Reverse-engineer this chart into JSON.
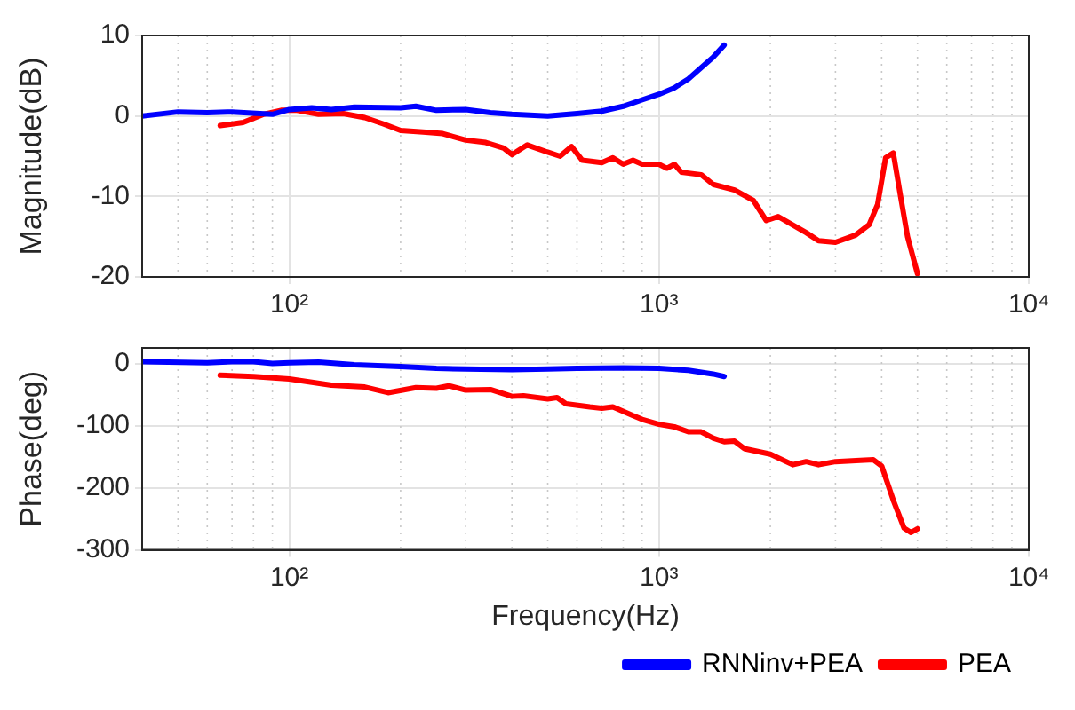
{
  "chart_data": [
    {
      "type": "line",
      "ylabel": "Magnitude(dB)",
      "log": "x",
      "grid": true,
      "legend": false,
      "xlim": [
        40,
        10000
      ],
      "xticks": [
        {
          "value": 100,
          "label": "10²"
        },
        {
          "value": 1000,
          "label": "10³"
        },
        {
          "value": 10000,
          "label": "10⁴"
        }
      ],
      "ylim": [
        -20,
        10
      ],
      "yticks": [
        10,
        0,
        -10,
        -20
      ],
      "series": [
        {
          "color": "#0000ff",
          "x": [
            40,
            50,
            60,
            70,
            90,
            100,
            115,
            130,
            150,
            200,
            220,
            250,
            300,
            350,
            400,
            500,
            600,
            700,
            800,
            900,
            1000,
            1100,
            1200,
            1300,
            1400,
            1500
          ],
          "values": [
            0,
            0.5,
            0.4,
            0.5,
            0.2,
            0.8,
            1.0,
            0.8,
            1.1,
            1.0,
            1.2,
            0.7,
            0.8,
            0.4,
            0.2,
            0,
            0.3,
            0.6,
            1.2,
            2.0,
            2.7,
            3.5,
            4.6,
            6,
            7.3,
            8.8
          ]
        },
        {
          "color": "#ff0000",
          "x": [
            65,
            75,
            85,
            95,
            105,
            120,
            140,
            160,
            180,
            200,
            230,
            260,
            300,
            340,
            380,
            400,
            440,
            500,
            540,
            580,
            620,
            700,
            750,
            800,
            850,
            900,
            1000,
            1050,
            1100,
            1150,
            1300,
            1400,
            1600,
            1800,
            1950,
            2100,
            2500,
            2700,
            3000,
            3400,
            3700,
            3900,
            4100,
            4300,
            4500,
            4700,
            5000
          ],
          "values": [
            -1.2,
            -0.8,
            0.2,
            0.7,
            0.7,
            0.2,
            0.3,
            -0.2,
            -1,
            -1.8,
            -2,
            -2.2,
            -3,
            -3.3,
            -4,
            -4.8,
            -3.6,
            -4.5,
            -5,
            -3.8,
            -5.5,
            -5.8,
            -5.2,
            -6,
            -5.5,
            -6,
            -6,
            -6.5,
            -6,
            -7,
            -7.3,
            -8.5,
            -9.2,
            -10.5,
            -13,
            -12.5,
            -14.5,
            -15.5,
            -15.7,
            -14.8,
            -13.5,
            -11,
            -5.2,
            -4.6,
            -10,
            -15,
            -19.6
          ]
        }
      ]
    },
    {
      "type": "line",
      "ylabel": "Phase(deg)",
      "xlabel": "Frequency(Hz)",
      "log": "x",
      "grid": true,
      "legend": "bottom right",
      "xlim": [
        40,
        10000
      ],
      "xticks": [
        {
          "value": 100,
          "label": "10²"
        },
        {
          "value": 1000,
          "label": "10³"
        },
        {
          "value": 10000,
          "label": "10⁴"
        }
      ],
      "ylim": [
        -300,
        25
      ],
      "yticks": [
        0,
        -100,
        -200,
        -300
      ],
      "series": [
        {
          "name": "RNNinv+PEA",
          "color": "#0000ff",
          "x": [
            40,
            60,
            70,
            80,
            90,
            100,
            120,
            150,
            200,
            250,
            300,
            400,
            500,
            600,
            800,
            1000,
            1200,
            1400,
            1500
          ],
          "values": [
            3,
            1,
            3,
            3,
            0,
            1,
            2,
            -2,
            -5,
            -8,
            -9,
            -10,
            -9,
            -8,
            -7,
            -8,
            -11,
            -17,
            -21
          ]
        },
        {
          "name": "PEA",
          "color": "#ff0000",
          "x": [
            65,
            80,
            100,
            130,
            160,
            185,
            220,
            250,
            270,
            300,
            350,
            400,
            430,
            500,
            530,
            560,
            650,
            700,
            750,
            850,
            900,
            1000,
            1100,
            1200,
            1300,
            1400,
            1500,
            1600,
            1700,
            2000,
            2300,
            2500,
            2700,
            3000,
            3500,
            3800,
            4000,
            4300,
            4600,
            4800,
            5000
          ],
          "values": [
            -19,
            -21,
            -25,
            -35,
            -38,
            -47,
            -39,
            -40,
            -36,
            -43,
            -42,
            -53,
            -52,
            -57,
            -55,
            -65,
            -70,
            -72,
            -70,
            -84,
            -90,
            -98,
            -102,
            -110,
            -110,
            -120,
            -126,
            -125,
            -137,
            -146,
            -163,
            -158,
            -163,
            -158,
            -156,
            -155,
            -165,
            -220,
            -265,
            -272,
            -266
          ]
        }
      ]
    }
  ]
}
